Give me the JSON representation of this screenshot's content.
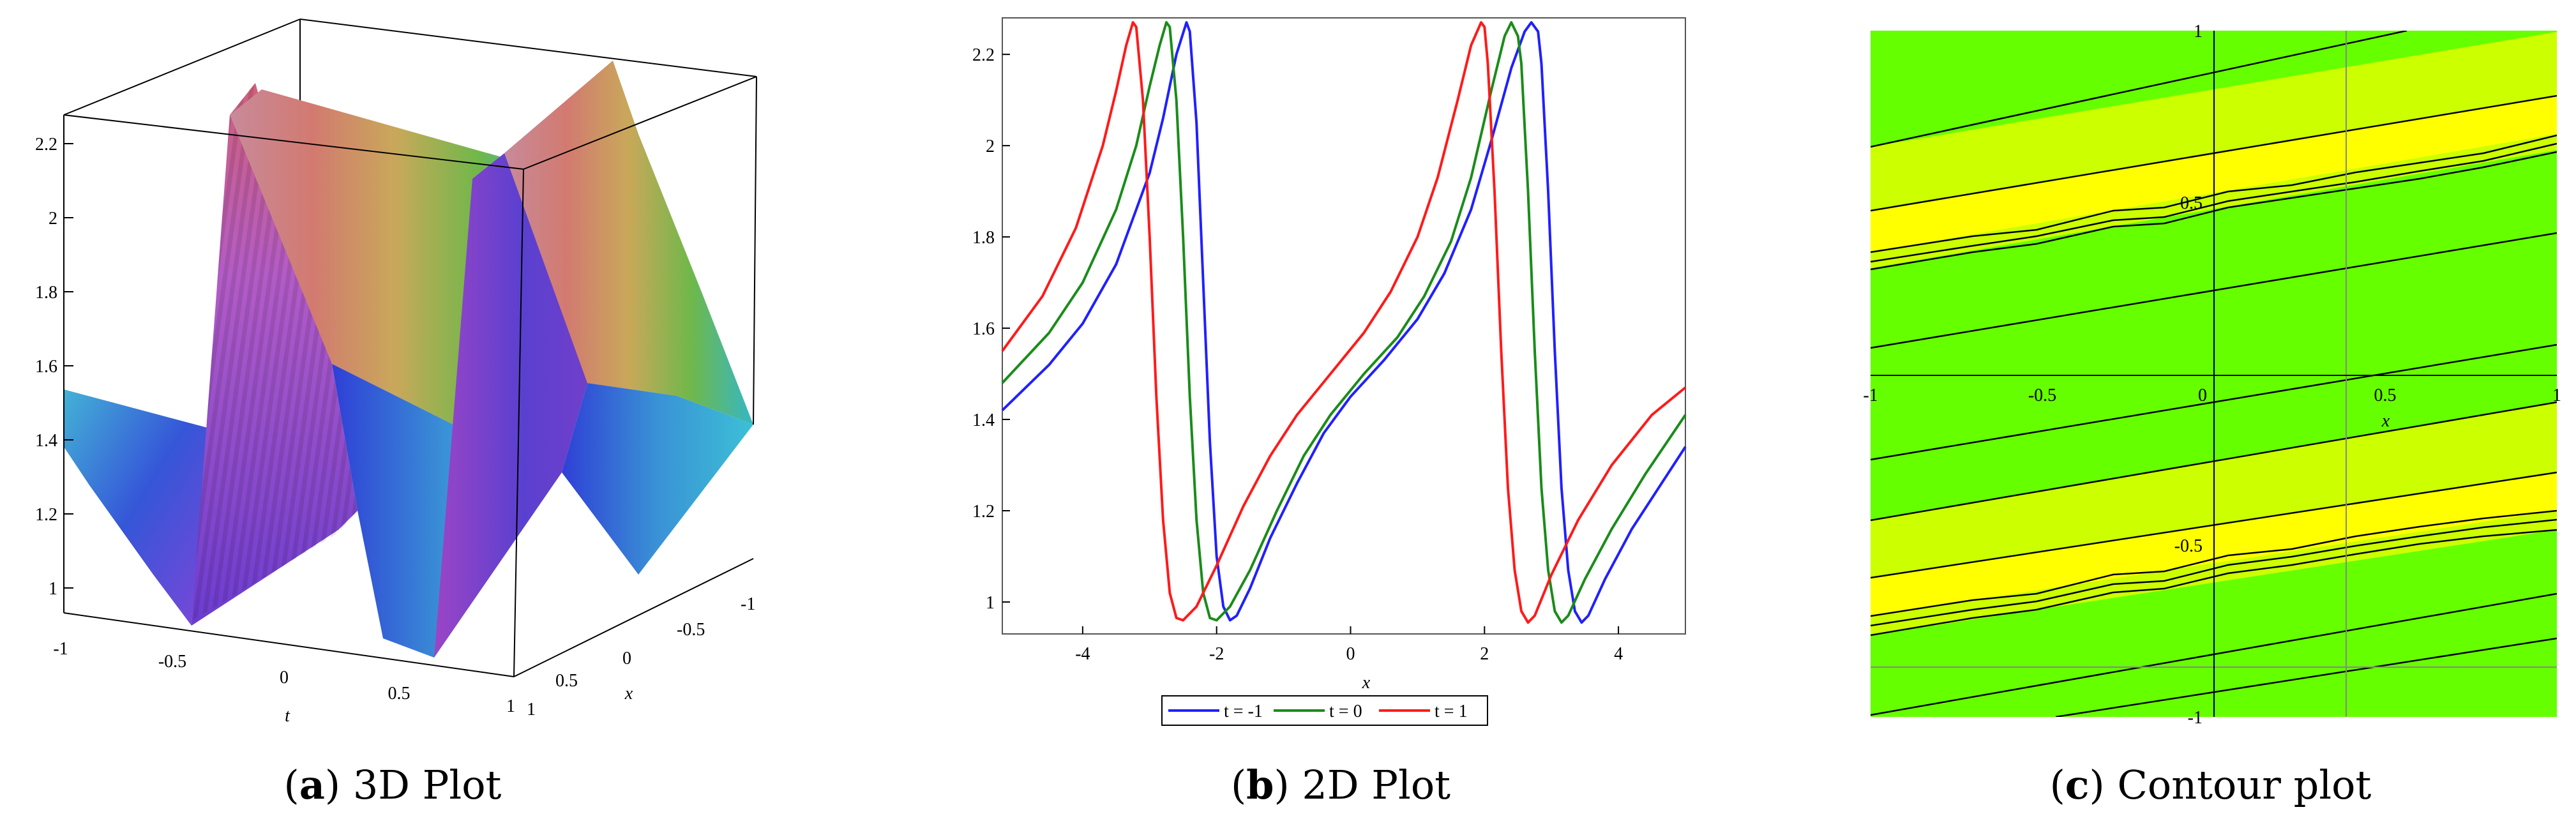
{
  "figure": {
    "captions": [
      {
        "label": "a",
        "text": "3D Plot"
      },
      {
        "label": "b",
        "text": "2D Plot"
      },
      {
        "label": "c",
        "text": "Contour plot"
      }
    ]
  },
  "chart_data": [
    {
      "type": "surface3d",
      "panel": "a",
      "axes": {
        "x_label": "x",
        "t_label": "t",
        "z_ticks": [
          "1",
          "1.2",
          "1.4",
          "1.6",
          "1.8",
          "2",
          "2.2"
        ],
        "t_ticks": [
          "-1",
          "-0.5",
          "0",
          "0.5",
          "1"
        ],
        "x_ticks": [
          "1",
          "0.5",
          "0",
          "-0.5",
          "-1"
        ],
        "zlim": [
          0.95,
          2.27
        ]
      },
      "colormap": "rainbow (purple low, blue, cyan, green, red high)"
    },
    {
      "type": "line",
      "panel": "b",
      "xlabel": "x",
      "xlim": [
        -5.2,
        5
      ],
      "ylim": [
        0.93,
        2.28
      ],
      "x_ticks": [
        -4,
        -2,
        0,
        2,
        4
      ],
      "y_ticks": [
        1,
        1.2,
        1.4,
        1.6,
        1.8,
        2,
        2.2
      ],
      "legend_position": "bottom",
      "series": [
        {
          "name": "t = -1",
          "color": "#2020ff",
          "x": [
            -5.2,
            -4.5,
            -4.0,
            -3.5,
            -3.0,
            -2.8,
            -2.6,
            -2.45,
            -2.4,
            -2.3,
            -2.2,
            -2.1,
            -2.0,
            -1.9,
            -1.8,
            -1.7,
            -1.5,
            -1.2,
            -0.8,
            -0.4,
            0.0,
            0.5,
            1.0,
            1.4,
            1.8,
            2.1,
            2.4,
            2.6,
            2.7,
            2.8,
            2.85,
            2.95,
            3.05,
            3.15,
            3.25,
            3.35,
            3.45,
            3.55,
            3.8,
            4.2,
            4.6,
            5.0
          ],
          "y": [
            1.42,
            1.52,
            1.61,
            1.74,
            1.94,
            2.06,
            2.2,
            2.27,
            2.25,
            2.05,
            1.7,
            1.35,
            1.1,
            0.99,
            0.96,
            0.97,
            1.03,
            1.14,
            1.26,
            1.37,
            1.45,
            1.53,
            1.62,
            1.72,
            1.86,
            2.01,
            2.17,
            2.25,
            2.27,
            2.25,
            2.18,
            1.9,
            1.55,
            1.25,
            1.07,
            0.98,
            0.955,
            0.97,
            1.05,
            1.16,
            1.25,
            1.34
          ]
        },
        {
          "name": "t = 0",
          "color": "#1a8c1a",
          "x": [
            -5.2,
            -4.5,
            -4.0,
            -3.5,
            -3.2,
            -3.0,
            -2.85,
            -2.75,
            -2.7,
            -2.6,
            -2.5,
            -2.4,
            -2.3,
            -2.2,
            -2.1,
            -2.0,
            -1.8,
            -1.5,
            -1.1,
            -0.7,
            -0.3,
            0.2,
            0.7,
            1.1,
            1.5,
            1.8,
            2.1,
            2.3,
            2.4,
            2.5,
            2.55,
            2.65,
            2.75,
            2.85,
            2.95,
            3.05,
            3.15,
            3.25,
            3.5,
            3.9,
            4.4,
            5.0
          ],
          "y": [
            1.48,
            1.59,
            1.7,
            1.86,
            2.0,
            2.13,
            2.22,
            2.27,
            2.26,
            2.1,
            1.8,
            1.45,
            1.18,
            1.02,
            0.965,
            0.96,
            0.99,
            1.07,
            1.2,
            1.32,
            1.41,
            1.5,
            1.58,
            1.67,
            1.79,
            1.93,
            2.12,
            2.24,
            2.27,
            2.24,
            2.18,
            1.9,
            1.55,
            1.25,
            1.07,
            0.98,
            0.955,
            0.97,
            1.05,
            1.16,
            1.28,
            1.41
          ]
        },
        {
          "name": "t = 1",
          "color": "#ff1a1a",
          "x": [
            -5.2,
            -4.6,
            -4.1,
            -3.7,
            -3.5,
            -3.35,
            -3.25,
            -3.2,
            -3.1,
            -3.0,
            -2.9,
            -2.8,
            -2.7,
            -2.6,
            -2.5,
            -2.3,
            -2.0,
            -1.6,
            -1.2,
            -0.8,
            -0.3,
            0.2,
            0.6,
            1.0,
            1.3,
            1.6,
            1.8,
            1.95,
            2.0,
            2.05,
            2.15,
            2.25,
            2.35,
            2.45,
            2.55,
            2.65,
            2.75,
            3.0,
            3.4,
            3.9,
            4.5,
            5.0
          ],
          "y": [
            1.55,
            1.67,
            1.82,
            2.0,
            2.12,
            2.22,
            2.27,
            2.26,
            2.1,
            1.8,
            1.45,
            1.18,
            1.02,
            0.965,
            0.96,
            0.99,
            1.08,
            1.21,
            1.32,
            1.41,
            1.5,
            1.59,
            1.68,
            1.8,
            1.93,
            2.1,
            2.22,
            2.27,
            2.26,
            2.18,
            1.9,
            1.55,
            1.25,
            1.07,
            0.98,
            0.955,
            0.97,
            1.06,
            1.18,
            1.3,
            1.41,
            1.47
          ]
        }
      ]
    },
    {
      "type": "contour",
      "panel": "c",
      "xlabel": "x",
      "xlim": [
        -1,
        1
      ],
      "ylim": [
        -1,
        1
      ],
      "x_ticks": [
        "-1",
        "-0.5",
        "0",
        "0.5",
        "1"
      ],
      "y_ticks": [
        "1",
        "0.5",
        "-0.5",
        "-1"
      ],
      "colors": {
        "low": "#66ff00",
        "mid": "#ccff00",
        "high": "#ffff00"
      }
    }
  ]
}
